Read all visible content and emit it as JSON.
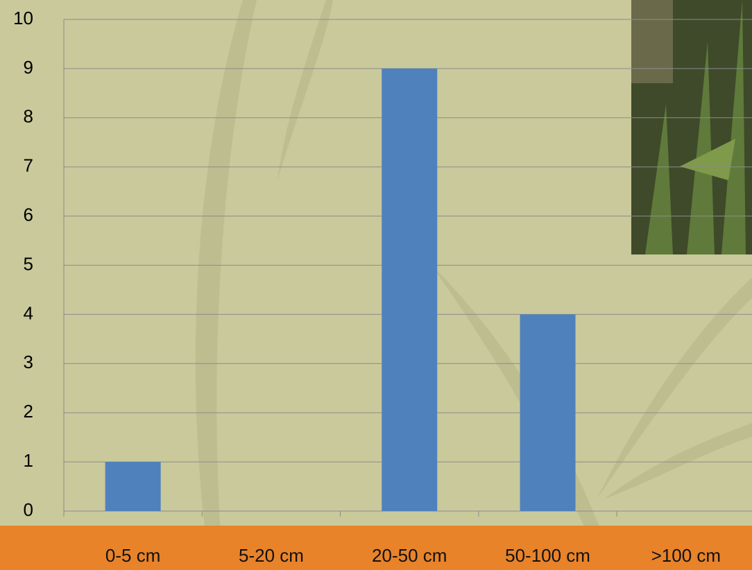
{
  "chart_data": {
    "type": "bar",
    "categories": [
      "0-5 cm",
      "5-20 cm",
      "20-50 cm",
      "50-100 cm",
      ">100 cm"
    ],
    "values": [
      1,
      0,
      9,
      4,
      0
    ],
    "color": "#4f81bd",
    "ylim": [
      0,
      10
    ],
    "yticks": [
      0,
      1,
      2,
      3,
      4,
      5,
      6,
      7,
      8,
      9,
      10
    ],
    "grid": true
  }
}
